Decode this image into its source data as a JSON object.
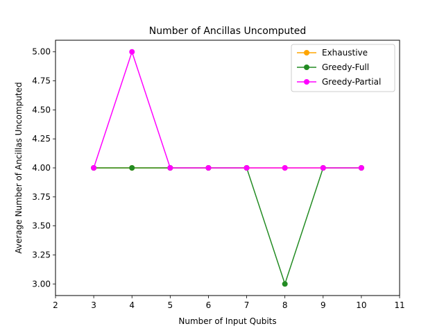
{
  "chart_data": {
    "type": "line",
    "title": "Number of Ancillas Uncomputed",
    "xlabel": "Number of Input Qubits",
    "ylabel": "Average Number of Ancillas Uncomputed",
    "xlim": [
      2,
      11
    ],
    "ylim": [
      2.9,
      5.1
    ],
    "xticks": [
      2,
      3,
      4,
      5,
      6,
      7,
      8,
      9,
      10,
      11
    ],
    "yticks": [
      3.0,
      3.25,
      3.5,
      3.75,
      4.0,
      4.25,
      4.5,
      4.75,
      5.0
    ],
    "ytick_labels": [
      "3.00",
      "3.25",
      "3.50",
      "3.75",
      "4.00",
      "4.25",
      "4.50",
      "4.75",
      "5.00"
    ],
    "grid": false,
    "legend_position": "top-right",
    "x": [
      3,
      4,
      5,
      6,
      7,
      8,
      9,
      10
    ],
    "series": [
      {
        "name": "Exhaustive",
        "color": "#ffa500",
        "values": [
          4,
          4,
          4,
          4,
          4,
          4,
          4,
          4
        ]
      },
      {
        "name": "Greedy-Full",
        "color": "#228b22",
        "values": [
          4,
          4,
          4,
          4,
          4,
          3,
          4,
          4
        ]
      },
      {
        "name": "Greedy-Partial",
        "color": "#ff00ff",
        "values": [
          4,
          5,
          4,
          4,
          4,
          4,
          4,
          4
        ]
      }
    ]
  }
}
